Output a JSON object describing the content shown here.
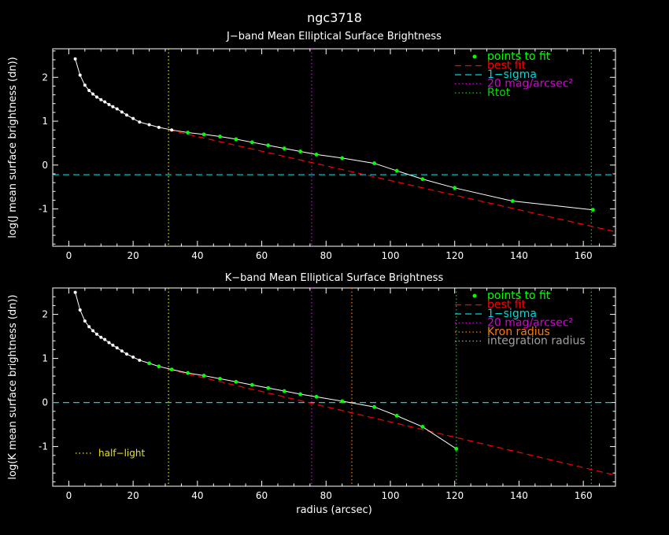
{
  "figure_title": "ngc3718",
  "colors": {
    "background": "#000000",
    "axes": "#ffffff",
    "points_to_fit": "#00ff00",
    "best_fit": "#ff0000",
    "one_sigma": "#00d8d8",
    "mag20": "#d800d8",
    "rtot": "#00d800",
    "kron": "#ff7a00",
    "integration": "#a0a0a0",
    "half_light": "#e6e600",
    "profile": "#ffffff"
  },
  "chart_data": [
    {
      "type": "line",
      "title": "J−band Mean Elliptical Surface Brightness",
      "xlabel": "",
      "ylabel": "log(J mean surface brightness (dn))",
      "xlim": [
        -5,
        170
      ],
      "ylim": [
        -1.85,
        2.65
      ],
      "xticks": [
        0,
        20,
        40,
        60,
        80,
        100,
        120,
        140,
        160
      ],
      "yticks": [
        -1,
        0,
        1,
        2
      ],
      "legend_position": "top-right",
      "legend": [
        "points to fit",
        "best fit",
        "1−sigma",
        "20 mag/arcsec²",
        "Rtot"
      ],
      "profile_x": [
        2,
        3.5,
        5,
        6.3,
        7.5,
        8.7,
        10,
        11.2,
        12.5,
        13.7,
        15,
        16.5,
        18,
        20,
        22,
        25,
        28,
        32,
        37,
        42,
        47,
        52,
        57,
        62,
        67,
        72,
        77,
        85,
        95,
        102,
        110,
        120,
        138,
        163
      ],
      "profile_y": [
        2.42,
        2.05,
        1.82,
        1.7,
        1.62,
        1.55,
        1.49,
        1.44,
        1.38,
        1.33,
        1.28,
        1.21,
        1.14,
        1.06,
        0.98,
        0.92,
        0.86,
        0.8,
        0.74,
        0.7,
        0.65,
        0.59,
        0.52,
        0.45,
        0.38,
        0.31,
        0.24,
        0.16,
        0.04,
        -0.13,
        -0.32,
        -0.52,
        -0.82,
        -1.02
      ],
      "fit_points_x": [
        37,
        42,
        47,
        52,
        57,
        62,
        67,
        72,
        77,
        85,
        95,
        102,
        110,
        120,
        138,
        163
      ],
      "fit_points_y": [
        0.74,
        0.7,
        0.65,
        0.59,
        0.52,
        0.45,
        0.38,
        0.31,
        0.24,
        0.16,
        0.04,
        -0.13,
        -0.32,
        -0.52,
        -0.82,
        -1.02
      ],
      "best_fit_x": [
        31,
        170
      ],
      "best_fit_y": [
        0.8,
        -1.52
      ],
      "one_sigma_y": -0.22,
      "mag20_x": 75.5,
      "rtot_x": 162.5,
      "half_light_x": 31
    },
    {
      "type": "line",
      "title": "K−band Mean Elliptical Surface Brightness",
      "xlabel": "radius (arcsec)",
      "ylabel": "log(K mean surface brightness (dn))",
      "xlim": [
        -5,
        170
      ],
      "ylim": [
        -1.9,
        2.6
      ],
      "xticks": [
        0,
        20,
        40,
        60,
        80,
        100,
        120,
        140,
        160
      ],
      "yticks": [
        -1,
        0,
        1,
        2
      ],
      "legend_position": "top-right",
      "legend": [
        "points to fit",
        "best fit",
        "1−sigma",
        "20 mag/arcsec²",
        "Kron radius",
        "integration radius"
      ],
      "half_light_label": "half−light",
      "profile_x": [
        2,
        3.5,
        5,
        6.3,
        7.5,
        8.7,
        10,
        11.2,
        12.5,
        13.7,
        15,
        16.5,
        18,
        20,
        22,
        25,
        28,
        32,
        37,
        42,
        47,
        52,
        57,
        62,
        67,
        72,
        77,
        85,
        95,
        102,
        110,
        120.5
      ],
      "profile_y": [
        2.5,
        2.1,
        1.85,
        1.72,
        1.63,
        1.55,
        1.48,
        1.43,
        1.36,
        1.3,
        1.24,
        1.17,
        1.1,
        1.03,
        0.96,
        0.89,
        0.82,
        0.75,
        0.67,
        0.61,
        0.54,
        0.47,
        0.4,
        0.33,
        0.26,
        0.19,
        0.13,
        0.03,
        -0.1,
        -0.3,
        -0.55,
        -1.05
      ],
      "fit_points_x": [
        25,
        28,
        32,
        37,
        42,
        47,
        52,
        57,
        62,
        67,
        72,
        77,
        85,
        95,
        102,
        110,
        120.5
      ],
      "fit_points_y": [
        0.89,
        0.82,
        0.75,
        0.67,
        0.61,
        0.54,
        0.47,
        0.4,
        0.33,
        0.26,
        0.19,
        0.13,
        0.03,
        -0.1,
        -0.3,
        -0.55,
        -1.05
      ],
      "best_fit_x": [
        31,
        170
      ],
      "best_fit_y": [
        0.75,
        -1.65
      ],
      "one_sigma_y": 0.0,
      "mag20_x": 75.5,
      "kron_x": 88,
      "integration_x": 120.5,
      "rtot_x": 162.5,
      "half_light_x": 31
    }
  ]
}
